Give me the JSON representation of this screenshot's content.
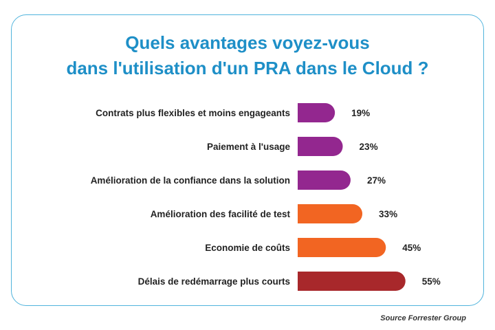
{
  "chart_data": {
    "type": "bar",
    "orientation": "horizontal",
    "title_lines": [
      "Quels avantages voyez-vous",
      "dans l'utilisation d'un PRA dans le Cloud ?"
    ],
    "categories": [
      "Contrats plus flexibles et moins engageants",
      "Paiement à l'usage",
      "Amélioration de la confiance dans la solution",
      "Amélioration des facilité de test",
      "Economie de coûts",
      "Délais de redémarrage plus courts"
    ],
    "values": [
      19,
      23,
      27,
      33,
      45,
      55
    ],
    "value_labels": [
      "19%",
      "23%",
      "27%",
      "33%",
      "45%",
      "55%"
    ],
    "bar_colors": [
      "#93278f",
      "#93278f",
      "#93278f",
      "#f26522",
      "#f26522",
      "#a8282b"
    ],
    "grid": false,
    "legend": "none"
  },
  "source": "Source Forrester Group",
  "colors": {
    "title": "#1e8fc7",
    "border": "#4fb3dc",
    "label": "#222222"
  }
}
